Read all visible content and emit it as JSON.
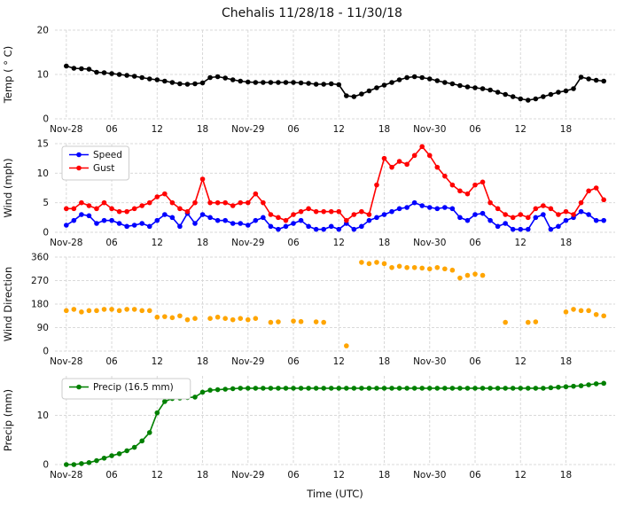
{
  "title": "Chehalis 11/28/18 - 11/30/18",
  "xlabel": "Time (UTC)",
  "x_ticks": {
    "hours": [
      0,
      6,
      12,
      18,
      24,
      30,
      36,
      42,
      48,
      54,
      60,
      66
    ],
    "labels": [
      "Nov-28",
      "06",
      "12",
      "18",
      "Nov-29",
      "06",
      "12",
      "18",
      "Nov-30",
      "06",
      "12",
      "18"
    ]
  },
  "x_range": [
    -1.5,
    72.5
  ],
  "colors": {
    "temp": "#000000",
    "speed": "#0000ff",
    "gust": "#ff0000",
    "wind_direction": "#ffa500",
    "precip": "#008000",
    "grid": "#d9d9d9"
  },
  "chart_data": [
    {
      "id": "temp",
      "type": "line",
      "title": "Chehalis 11/28/18 - 11/30/18",
      "ylabel": "Temp ( ° C)",
      "ylim": [
        0,
        20
      ],
      "yticks": [
        0,
        10,
        20
      ],
      "grid": true,
      "series": [
        {
          "name": "Temp",
          "color": "#000000",
          "values": [
            11.9,
            11.4,
            11.3,
            11.2,
            10.5,
            10.4,
            10.2,
            10.0,
            9.8,
            9.6,
            9.3,
            9.0,
            8.8,
            8.5,
            8.2,
            7.9,
            7.8,
            7.9,
            8.1,
            9.3,
            9.5,
            9.2,
            8.8,
            8.5,
            8.3,
            8.2,
            8.2,
            8.2,
            8.2,
            8.2,
            8.2,
            8.1,
            8.0,
            7.8,
            7.8,
            7.9,
            7.7,
            5.2,
            5.0,
            5.6,
            6.3,
            7.0,
            7.6,
            8.2,
            8.8,
            9.3,
            9.5,
            9.3,
            9.0,
            8.6,
            8.2,
            7.9,
            7.5,
            7.2,
            7.0,
            6.8,
            6.5,
            6.0,
            5.5,
            5.0,
            4.5,
            4.2,
            4.5,
            5.0,
            5.5,
            6.0,
            6.3,
            6.8,
            9.4,
            9.0,
            8.7,
            8.5
          ]
        }
      ]
    },
    {
      "id": "wind",
      "type": "line",
      "ylabel": "Wind (mph)",
      "ylim": [
        0,
        15
      ],
      "yticks": [
        0,
        5,
        10,
        15
      ],
      "grid": true,
      "legend": {
        "position": "top-left",
        "entries": [
          "Speed",
          "Gust"
        ]
      },
      "series": [
        {
          "name": "Speed",
          "color": "#0000ff",
          "values": [
            1.2,
            2.0,
            3.0,
            2.8,
            1.5,
            2.0,
            2.0,
            1.5,
            1.0,
            1.2,
            1.5,
            1.0,
            2.0,
            3.0,
            2.5,
            1.0,
            3.2,
            1.5,
            3.0,
            2.5,
            2.0,
            2.0,
            1.5,
            1.5,
            1.2,
            2.0,
            2.5,
            1.0,
            0.5,
            1.0,
            1.5,
            2.0,
            1.0,
            0.5,
            0.5,
            1.0,
            0.5,
            1.5,
            0.5,
            1.0,
            2.0,
            2.5,
            3.0,
            3.5,
            4.0,
            4.2,
            5.0,
            4.5,
            4.2,
            4.0,
            4.2,
            4.0,
            2.5,
            2.0,
            3.0,
            3.2,
            2.0,
            1.0,
            1.5,
            0.5,
            0.5,
            0.5,
            2.5,
            3.0,
            0.5,
            1.0,
            2.0,
            2.5,
            3.5,
            3.0,
            2.0,
            2.0
          ]
        },
        {
          "name": "Gust",
          "color": "#ff0000",
          "values": [
            4.0,
            4.0,
            5.0,
            4.5,
            4.0,
            5.0,
            4.0,
            3.5,
            3.5,
            4.0,
            4.5,
            5.0,
            6.0,
            6.5,
            5.0,
            4.0,
            3.5,
            5.0,
            9.0,
            5.0,
            5.0,
            5.0,
            4.5,
            5.0,
            5.0,
            6.5,
            5.0,
            3.0,
            2.5,
            2.0,
            3.0,
            3.5,
            4.0,
            3.5,
            3.5,
            3.5,
            3.5,
            2.0,
            3.0,
            3.5,
            3.0,
            8.0,
            12.5,
            11.0,
            12.0,
            11.5,
            13.0,
            14.5,
            13.0,
            11.0,
            9.5,
            8.0,
            7.0,
            6.5,
            8.0,
            8.5,
            5.0,
            4.0,
            3.0,
            2.5,
            3.0,
            2.5,
            4.0,
            4.5,
            4.0,
            3.0,
            3.5,
            3.0,
            5.0,
            7.0,
            7.5,
            5.5
          ]
        }
      ]
    },
    {
      "id": "wind-direction",
      "type": "scatter",
      "ylabel": "Wind Direction",
      "ylim": [
        0,
        360
      ],
      "yticks": [
        0,
        90,
        180,
        270,
        360
      ],
      "grid": true,
      "series": [
        {
          "name": "Wind Direction",
          "color": "#ffa500",
          "x": [
            0,
            1,
            2,
            3,
            4,
            5,
            6,
            7,
            8,
            9,
            10,
            11,
            12,
            13,
            14,
            15,
            16,
            17,
            19,
            20,
            21,
            22,
            23,
            24,
            25,
            27,
            28,
            30,
            31,
            33,
            34,
            37,
            39,
            40,
            41,
            42,
            43,
            44,
            45,
            46,
            47,
            48,
            49,
            50,
            51,
            52,
            53,
            54,
            55,
            58,
            61,
            62,
            66,
            67,
            68,
            69,
            70,
            71
          ],
          "values": [
            155,
            160,
            150,
            155,
            155,
            160,
            160,
            155,
            160,
            160,
            155,
            155,
            130,
            132,
            128,
            135,
            120,
            125,
            125,
            130,
            125,
            120,
            125,
            120,
            125,
            110,
            112,
            115,
            113,
            112,
            110,
            20,
            340,
            335,
            340,
            335,
            320,
            325,
            320,
            320,
            318,
            315,
            320,
            315,
            310,
            280,
            290,
            295,
            290,
            110,
            110,
            112,
            150,
            160,
            155,
            155,
            140,
            135
          ]
        }
      ]
    },
    {
      "id": "precip",
      "type": "line",
      "ylabel": "Precip (mm)",
      "ylim": [
        0,
        18
      ],
      "yticks": [
        0,
        10
      ],
      "grid": true,
      "legend": {
        "position": "top-left",
        "entries": [
          "Precip (16.5 mm)"
        ]
      },
      "series": [
        {
          "name": "Precip (16.5 mm)",
          "color": "#008000",
          "values": [
            0,
            0,
            0.2,
            0.4,
            0.8,
            1.3,
            1.8,
            2.2,
            2.8,
            3.5,
            4.8,
            6.5,
            10.5,
            12.8,
            13.4,
            13.5,
            13.6,
            13.7,
            14.7,
            15.1,
            15.2,
            15.3,
            15.4,
            15.5,
            15.5,
            15.5,
            15.5,
            15.5,
            15.5,
            15.5,
            15.5,
            15.5,
            15.5,
            15.5,
            15.5,
            15.5,
            15.5,
            15.5,
            15.5,
            15.5,
            15.5,
            15.5,
            15.5,
            15.5,
            15.5,
            15.5,
            15.5,
            15.5,
            15.5,
            15.5,
            15.5,
            15.5,
            15.5,
            15.5,
            15.5,
            15.5,
            15.5,
            15.5,
            15.5,
            15.5,
            15.5,
            15.5,
            15.5,
            15.5,
            15.6,
            15.7,
            15.8,
            15.9,
            16.0,
            16.2,
            16.4,
            16.5
          ]
        }
      ]
    }
  ]
}
